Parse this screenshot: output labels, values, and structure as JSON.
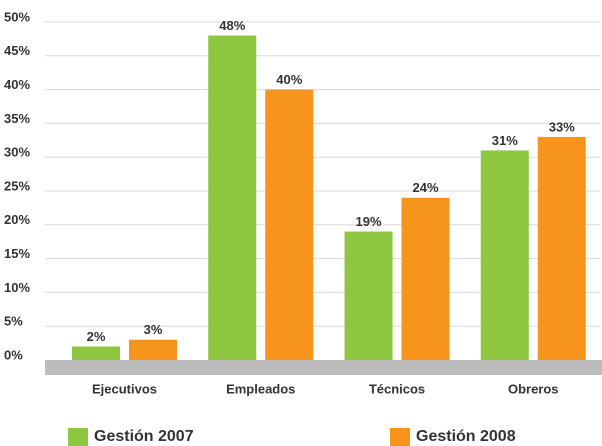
{
  "chart_data": {
    "type": "bar",
    "categories": [
      "Ejecutivos",
      "Empleados",
      "Técnicos",
      "Obreros"
    ],
    "series": [
      {
        "name": "Gestión 2007",
        "color": "#8dc63f",
        "values": [
          2,
          48,
          19,
          31
        ],
        "value_labels": [
          "2%",
          "48%",
          "19%",
          "31%"
        ]
      },
      {
        "name": "Gestión 2008",
        "color": "#f7941d",
        "values": [
          3,
          40,
          24,
          33
        ],
        "value_labels": [
          "3%",
          "40%",
          "24%",
          "33%"
        ]
      }
    ],
    "ylim": [
      0,
      50
    ],
    "yticks": [
      {
        "value": 0,
        "label": "0%"
      },
      {
        "value": 5,
        "label": "5%"
      },
      {
        "value": 10,
        "label": "10%"
      },
      {
        "value": 15,
        "label": "15%"
      },
      {
        "value": 20,
        "label": "20%"
      },
      {
        "value": 25,
        "label": "25%"
      },
      {
        "value": 30,
        "label": "30%"
      },
      {
        "value": 35,
        "label": "35%"
      },
      {
        "value": 40,
        "label": "40%"
      },
      {
        "value": 45,
        "label": "45%"
      },
      {
        "value": 50,
        "label": "50%"
      }
    ],
    "grid": true
  }
}
